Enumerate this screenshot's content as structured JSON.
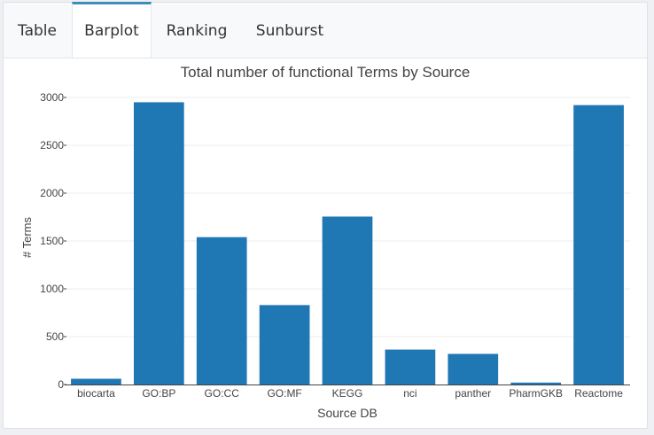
{
  "tabs": [
    {
      "label": "Table",
      "active": false
    },
    {
      "label": "Barplot",
      "active": true
    },
    {
      "label": "Ranking",
      "active": false
    },
    {
      "label": "Sunburst",
      "active": false
    }
  ],
  "chart_data": {
    "type": "bar",
    "title": "Total number of functional Terms by Source",
    "xlabel": "Source DB",
    "ylabel": "# Terms",
    "categories": [
      "biocarta",
      "GO:BP",
      "GO:CC",
      "GO:MF",
      "KEGG",
      "nci",
      "panther",
      "PharmGKB",
      "Reactome"
    ],
    "values": [
      60,
      2950,
      1540,
      830,
      1755,
      365,
      320,
      20,
      2920
    ],
    "ylim": [
      0,
      3000
    ],
    "yticks": [
      0,
      500,
      1000,
      1500,
      2000,
      2500,
      3000
    ],
    "grid": true,
    "bar_color": "#1f77b4"
  }
}
